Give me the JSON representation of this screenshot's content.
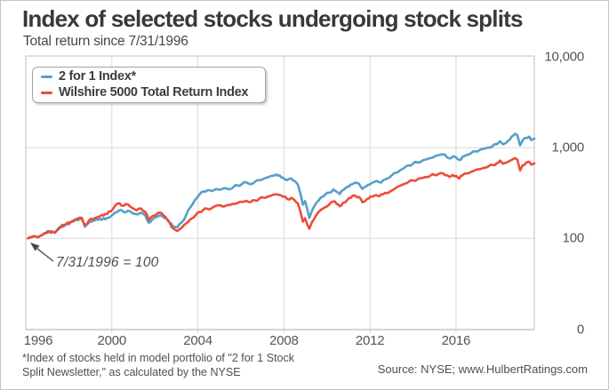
{
  "title": "Index of selected stocks undergoing stock splits",
  "subtitle": "Total return since 7/31/1996",
  "legend": {
    "items": [
      {
        "label": "2 for 1 Index*",
        "color": "#569fca"
      },
      {
        "label": "Wilshire 5000 Total Return Index",
        "color": "#ee4c38"
      }
    ]
  },
  "annotation": {
    "text": "7/31/1996 = 100"
  },
  "footnote": {
    "line1": "*Index of stocks held in model portfolio of \"2 for 1 Stock",
    "line2": "Split Newsletter,\" as calculated by the NYSE"
  },
  "source": "Source: NYSE; www.HulbertRatings.com",
  "colors": {
    "blue_line": "#569fca",
    "red_line": "#ee4c38",
    "gridline": "#d9d9d9",
    "plot_border": "#c2c2c2",
    "axis_line": "#a8a8a8",
    "tick_text": "#545454"
  },
  "chart_data": {
    "type": "line",
    "title": "Index of selected stocks undergoing stock splits",
    "subtitle": "Total return since 7/31/1996",
    "y_scale": "log",
    "x_range": [
      1996,
      2019.64
    ],
    "x_ticks": [
      {
        "label": "1996",
        "year": 1996
      },
      {
        "label": "2000",
        "year": 2000
      },
      {
        "label": "2004",
        "year": 2004
      },
      {
        "label": "2008",
        "year": 2008
      },
      {
        "label": "2012",
        "year": 2012
      },
      {
        "label": "2016",
        "year": 2016
      }
    ],
    "y_ticks": [
      {
        "label": "10,000",
        "value": 10000
      },
      {
        "label": "1,000",
        "value": 1000
      },
      {
        "label": "100",
        "value": 100
      },
      {
        "label": "0",
        "value": 0
      }
    ],
    "legend_position": "top-left",
    "grid": true,
    "annotation": "7/31/1996 = 100",
    "series": [
      {
        "name": "2 for 1 Index*",
        "color": "#569fca",
        "points": [
          [
            1996.1,
            100
          ],
          [
            1996.35,
            106
          ],
          [
            1996.6,
            104
          ],
          [
            1996.85,
            114
          ],
          [
            1997.1,
            120
          ],
          [
            1997.35,
            116
          ],
          [
            1997.6,
            134
          ],
          [
            1997.85,
            142
          ],
          [
            1998.1,
            152
          ],
          [
            1998.35,
            162
          ],
          [
            1998.6,
            166
          ],
          [
            1998.75,
            134
          ],
          [
            1998.95,
            150
          ],
          [
            1999.2,
            158
          ],
          [
            1999.45,
            165
          ],
          [
            1999.7,
            162
          ],
          [
            1999.95,
            175
          ],
          [
            2000.15,
            192
          ],
          [
            2000.35,
            205
          ],
          [
            2000.55,
            195
          ],
          [
            2000.75,
            202
          ],
          [
            2000.95,
            190
          ],
          [
            2001.15,
            184
          ],
          [
            2001.35,
            192
          ],
          [
            2001.55,
            180
          ],
          [
            2001.72,
            148
          ],
          [
            2001.9,
            163
          ],
          [
            2002.1,
            174
          ],
          [
            2002.3,
            180
          ],
          [
            2002.5,
            166
          ],
          [
            2002.7,
            148
          ],
          [
            2002.85,
            136
          ],
          [
            2003.05,
            133
          ],
          [
            2003.25,
            150
          ],
          [
            2003.45,
            180
          ],
          [
            2003.65,
            220
          ],
          [
            2003.85,
            262
          ],
          [
            2004.05,
            300
          ],
          [
            2004.25,
            330
          ],
          [
            2004.45,
            340
          ],
          [
            2004.65,
            332
          ],
          [
            2004.85,
            350
          ],
          [
            2005.05,
            345
          ],
          [
            2005.25,
            358
          ],
          [
            2005.45,
            348
          ],
          [
            2005.65,
            368
          ],
          [
            2005.85,
            384
          ],
          [
            2006.05,
            400
          ],
          [
            2006.25,
            415
          ],
          [
            2006.45,
            395
          ],
          [
            2006.65,
            420
          ],
          [
            2006.85,
            440
          ],
          [
            2007.05,
            455
          ],
          [
            2007.25,
            470
          ],
          [
            2007.45,
            490
          ],
          [
            2007.65,
            508
          ],
          [
            2007.8,
            498
          ],
          [
            2007.95,
            468
          ],
          [
            2008.15,
            440
          ],
          [
            2008.35,
            458
          ],
          [
            2008.5,
            428
          ],
          [
            2008.65,
            390
          ],
          [
            2008.78,
            305
          ],
          [
            2008.88,
            235
          ],
          [
            2008.98,
            258
          ],
          [
            2009.08,
            212
          ],
          [
            2009.18,
            168
          ],
          [
            2009.3,
            200
          ],
          [
            2009.5,
            245
          ],
          [
            2009.7,
            280
          ],
          [
            2009.9,
            300
          ],
          [
            2010.1,
            320
          ],
          [
            2010.3,
            348
          ],
          [
            2010.45,
            328
          ],
          [
            2010.6,
            308
          ],
          [
            2010.75,
            340
          ],
          [
            2010.95,
            372
          ],
          [
            2011.1,
            392
          ],
          [
            2011.3,
            412
          ],
          [
            2011.5,
            400
          ],
          [
            2011.65,
            352
          ],
          [
            2011.8,
            372
          ],
          [
            2011.95,
            392
          ],
          [
            2012.1,
            412
          ],
          [
            2012.3,
            432
          ],
          [
            2012.45,
            416
          ],
          [
            2012.6,
            436
          ],
          [
            2012.8,
            456
          ],
          [
            2013.0,
            492
          ],
          [
            2013.2,
            530
          ],
          [
            2013.4,
            562
          ],
          [
            2013.6,
            600
          ],
          [
            2013.8,
            640
          ],
          [
            2014.0,
            668
          ],
          [
            2014.2,
            690
          ],
          [
            2014.4,
            712
          ],
          [
            2014.6,
            740
          ],
          [
            2014.8,
            768
          ],
          [
            2015.0,
            800
          ],
          [
            2015.2,
            830
          ],
          [
            2015.4,
            842
          ],
          [
            2015.55,
            800
          ],
          [
            2015.7,
            762
          ],
          [
            2015.85,
            802
          ],
          [
            2016.0,
            782
          ],
          [
            2016.15,
            732
          ],
          [
            2016.3,
            792
          ],
          [
            2016.5,
            832
          ],
          [
            2016.7,
            872
          ],
          [
            2016.9,
            912
          ],
          [
            2017.1,
            942
          ],
          [
            2017.3,
            972
          ],
          [
            2017.5,
            1005
          ],
          [
            2017.7,
            1042
          ],
          [
            2017.9,
            1092
          ],
          [
            2018.05,
            1180
          ],
          [
            2018.18,
            1092
          ],
          [
            2018.32,
            1130
          ],
          [
            2018.5,
            1225
          ],
          [
            2018.65,
            1355
          ],
          [
            2018.75,
            1430
          ],
          [
            2018.85,
            1375
          ],
          [
            2018.98,
            1062
          ],
          [
            2019.1,
            1205
          ],
          [
            2019.25,
            1285
          ],
          [
            2019.4,
            1325
          ],
          [
            2019.5,
            1215
          ],
          [
            2019.64,
            1262
          ]
        ]
      },
      {
        "name": "Wilshire 5000 Total Return Index",
        "color": "#ee4c38",
        "points": [
          [
            1996.1,
            100
          ],
          [
            1996.35,
            105
          ],
          [
            1996.6,
            103
          ],
          [
            1996.85,
            113
          ],
          [
            1997.1,
            119
          ],
          [
            1997.35,
            115
          ],
          [
            1997.6,
            132
          ],
          [
            1997.85,
            142
          ],
          [
            1998.1,
            151
          ],
          [
            1998.35,
            163
          ],
          [
            1998.6,
            169
          ],
          [
            1998.75,
            139
          ],
          [
            1998.95,
            159
          ],
          [
            1999.2,
            167
          ],
          [
            1999.45,
            176
          ],
          [
            1999.7,
            186
          ],
          [
            1999.95,
            198
          ],
          [
            2000.15,
            228
          ],
          [
            2000.35,
            244
          ],
          [
            2000.55,
            229
          ],
          [
            2000.75,
            237
          ],
          [
            2000.95,
            217
          ],
          [
            2001.15,
            204
          ],
          [
            2001.35,
            214
          ],
          [
            2001.55,
            197
          ],
          [
            2001.72,
            159
          ],
          [
            2001.9,
            177
          ],
          [
            2002.1,
            187
          ],
          [
            2002.3,
            191
          ],
          [
            2002.5,
            171
          ],
          [
            2002.7,
            147
          ],
          [
            2002.85,
            129
          ],
          [
            2003.05,
            121
          ],
          [
            2003.25,
            131
          ],
          [
            2003.45,
            146
          ],
          [
            2003.65,
            162
          ],
          [
            2003.85,
            174
          ],
          [
            2004.05,
            196
          ],
          [
            2004.25,
            206
          ],
          [
            2004.45,
            211
          ],
          [
            2004.65,
            216
          ],
          [
            2004.85,
            229
          ],
          [
            2005.05,
            231
          ],
          [
            2005.25,
            226
          ],
          [
            2005.45,
            233
          ],
          [
            2005.65,
            241
          ],
          [
            2005.85,
            246
          ],
          [
            2006.05,
            253
          ],
          [
            2006.25,
            259
          ],
          [
            2006.45,
            251
          ],
          [
            2006.65,
            263
          ],
          [
            2006.85,
            273
          ],
          [
            2007.05,
            281
          ],
          [
            2007.25,
            289
          ],
          [
            2007.45,
            299
          ],
          [
            2007.65,
            306
          ],
          [
            2007.8,
            300
          ],
          [
            2007.95,
            289
          ],
          [
            2008.15,
            271
          ],
          [
            2008.35,
            280
          ],
          [
            2008.5,
            263
          ],
          [
            2008.65,
            243
          ],
          [
            2008.78,
            192
          ],
          [
            2008.88,
            153
          ],
          [
            2008.98,
            167
          ],
          [
            2009.08,
            143
          ],
          [
            2009.18,
            128
          ],
          [
            2009.3,
            150
          ],
          [
            2009.5,
            180
          ],
          [
            2009.7,
            205
          ],
          [
            2009.9,
            220
          ],
          [
            2010.1,
            236
          ],
          [
            2010.3,
            256
          ],
          [
            2010.45,
            240
          ],
          [
            2010.6,
            226
          ],
          [
            2010.75,
            246
          ],
          [
            2010.95,
            266
          ],
          [
            2011.1,
            280
          ],
          [
            2011.3,
            296
          ],
          [
            2011.5,
            286
          ],
          [
            2011.65,
            250
          ],
          [
            2011.8,
            262
          ],
          [
            2011.95,
            276
          ],
          [
            2012.1,
            288
          ],
          [
            2012.3,
            300
          ],
          [
            2012.45,
            292
          ],
          [
            2012.6,
            306
          ],
          [
            2012.8,
            316
          ],
          [
            2013.0,
            336
          ],
          [
            2013.2,
            360
          ],
          [
            2013.4,
            380
          ],
          [
            2013.6,
            400
          ],
          [
            2013.8,
            420
          ],
          [
            2014.0,
            436
          ],
          [
            2014.2,
            446
          ],
          [
            2014.4,
            461
          ],
          [
            2014.6,
            476
          ],
          [
            2014.8,
            491
          ],
          [
            2015.0,
            502
          ],
          [
            2015.2,
            516
          ],
          [
            2015.4,
            521
          ],
          [
            2015.55,
            500
          ],
          [
            2015.7,
            476
          ],
          [
            2015.85,
            501
          ],
          [
            2016.0,
            491
          ],
          [
            2016.15,
            456
          ],
          [
            2016.3,
            496
          ],
          [
            2016.5,
            521
          ],
          [
            2016.7,
            541
          ],
          [
            2016.9,
            566
          ],
          [
            2017.1,
            581
          ],
          [
            2017.3,
            601
          ],
          [
            2017.5,
            621
          ],
          [
            2017.7,
            646
          ],
          [
            2017.9,
            676
          ],
          [
            2018.05,
            722
          ],
          [
            2018.18,
            666
          ],
          [
            2018.32,
            686
          ],
          [
            2018.5,
            721
          ],
          [
            2018.65,
            751
          ],
          [
            2018.75,
            766
          ],
          [
            2018.85,
            741
          ],
          [
            2018.98,
            561
          ],
          [
            2019.1,
            641
          ],
          [
            2019.25,
            681
          ],
          [
            2019.4,
            701
          ],
          [
            2019.5,
            651
          ],
          [
            2019.64,
            671
          ]
        ]
      }
    ]
  }
}
